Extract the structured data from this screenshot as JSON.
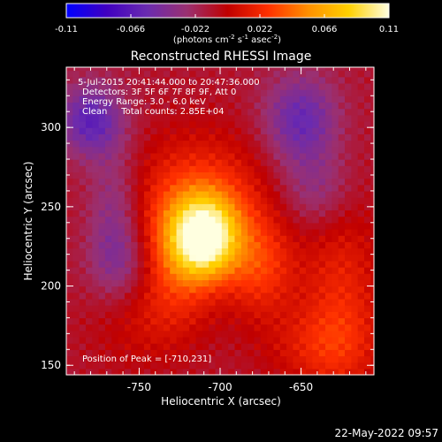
{
  "chart_data": {
    "type": "heatmap",
    "title": "Reconstructed RHESSI Image",
    "colorbar": {
      "ticks": [
        "-0.11",
        "-0.066",
        "-0.022",
        "0.022",
        "0.066",
        "0.11"
      ],
      "tick_values": [
        -0.11,
        -0.066,
        -0.022,
        0.022,
        0.066,
        0.11
      ],
      "range": [
        -0.11,
        0.11
      ],
      "unit_text": "(photons cm",
      "unit_text_2": " s",
      "unit_text_3": " asec",
      "unit_text_end": ")",
      "exp_1": "-2",
      "exp_2": "-1",
      "exp_3": "-2",
      "colors": [
        "#0000ff",
        "#4000c0",
        "#6a2bb0",
        "#9b3070",
        "#c00000",
        "#ff3000",
        "#ff9000",
        "#ffd000",
        "#ffffe0"
      ]
    },
    "xlabel": "Heliocentric X (arcsec)",
    "ylabel": "Heliocentric Y (arcsec)",
    "xticks": [
      "-750",
      "-700",
      "-650"
    ],
    "xtick_values": [
      -750,
      -700,
      -650
    ],
    "yticks": [
      "150",
      "200",
      "250",
      "300"
    ],
    "ytick_values": [
      150,
      200,
      250,
      300
    ],
    "xlim": [
      -795,
      -605
    ],
    "ylim": [
      144,
      338
    ],
    "annotations": [
      "5-Jul-2015 20:41:44.000 to 20:47:36.000",
      "Detectors: 3F 5F 6F 7F 8F 9F, Att 0",
      "Energy Range: 3.0 - 6.0 keV",
      "Clean     Total counts: 2.85E+04"
    ],
    "peak_label": "Position of Peak = [-710,231]",
    "peak": {
      "x": -710,
      "y": 231,
      "value": 0.11
    },
    "blobs": [
      {
        "x": -710,
        "y": 231,
        "sx": 14,
        "sy": 17,
        "amp": 0.11
      },
      {
        "x": -713,
        "y": 252,
        "sx": 30,
        "sy": 30,
        "amp": 0.045
      },
      {
        "x": -675,
        "y": 212,
        "sx": 15,
        "sy": 22,
        "amp": 0.035
      },
      {
        "x": -728,
        "y": 205,
        "sx": 18,
        "sy": 28,
        "amp": 0.03
      },
      {
        "x": -625,
        "y": 195,
        "sx": 18,
        "sy": 45,
        "amp": 0.03
      },
      {
        "x": -640,
        "y": 162,
        "sx": 25,
        "sy": 18,
        "amp": 0.022
      },
      {
        "x": -755,
        "y": 172,
        "sx": 22,
        "sy": 20,
        "amp": 0.012
      },
      {
        "x": -780,
        "y": 305,
        "sx": 14,
        "sy": 16,
        "amp": -0.05
      },
      {
        "x": -650,
        "y": 305,
        "sx": 16,
        "sy": 20,
        "amp": -0.045
      },
      {
        "x": -765,
        "y": 245,
        "sx": 12,
        "sy": 30,
        "amp": -0.03
      },
      {
        "x": -640,
        "y": 260,
        "sx": 16,
        "sy": 18,
        "amp": -0.025
      },
      {
        "x": -760,
        "y": 215,
        "sx": 14,
        "sy": 16,
        "amp": -0.02
      }
    ],
    "background": -0.012
  },
  "timestamp": "22-May-2022 09:57"
}
